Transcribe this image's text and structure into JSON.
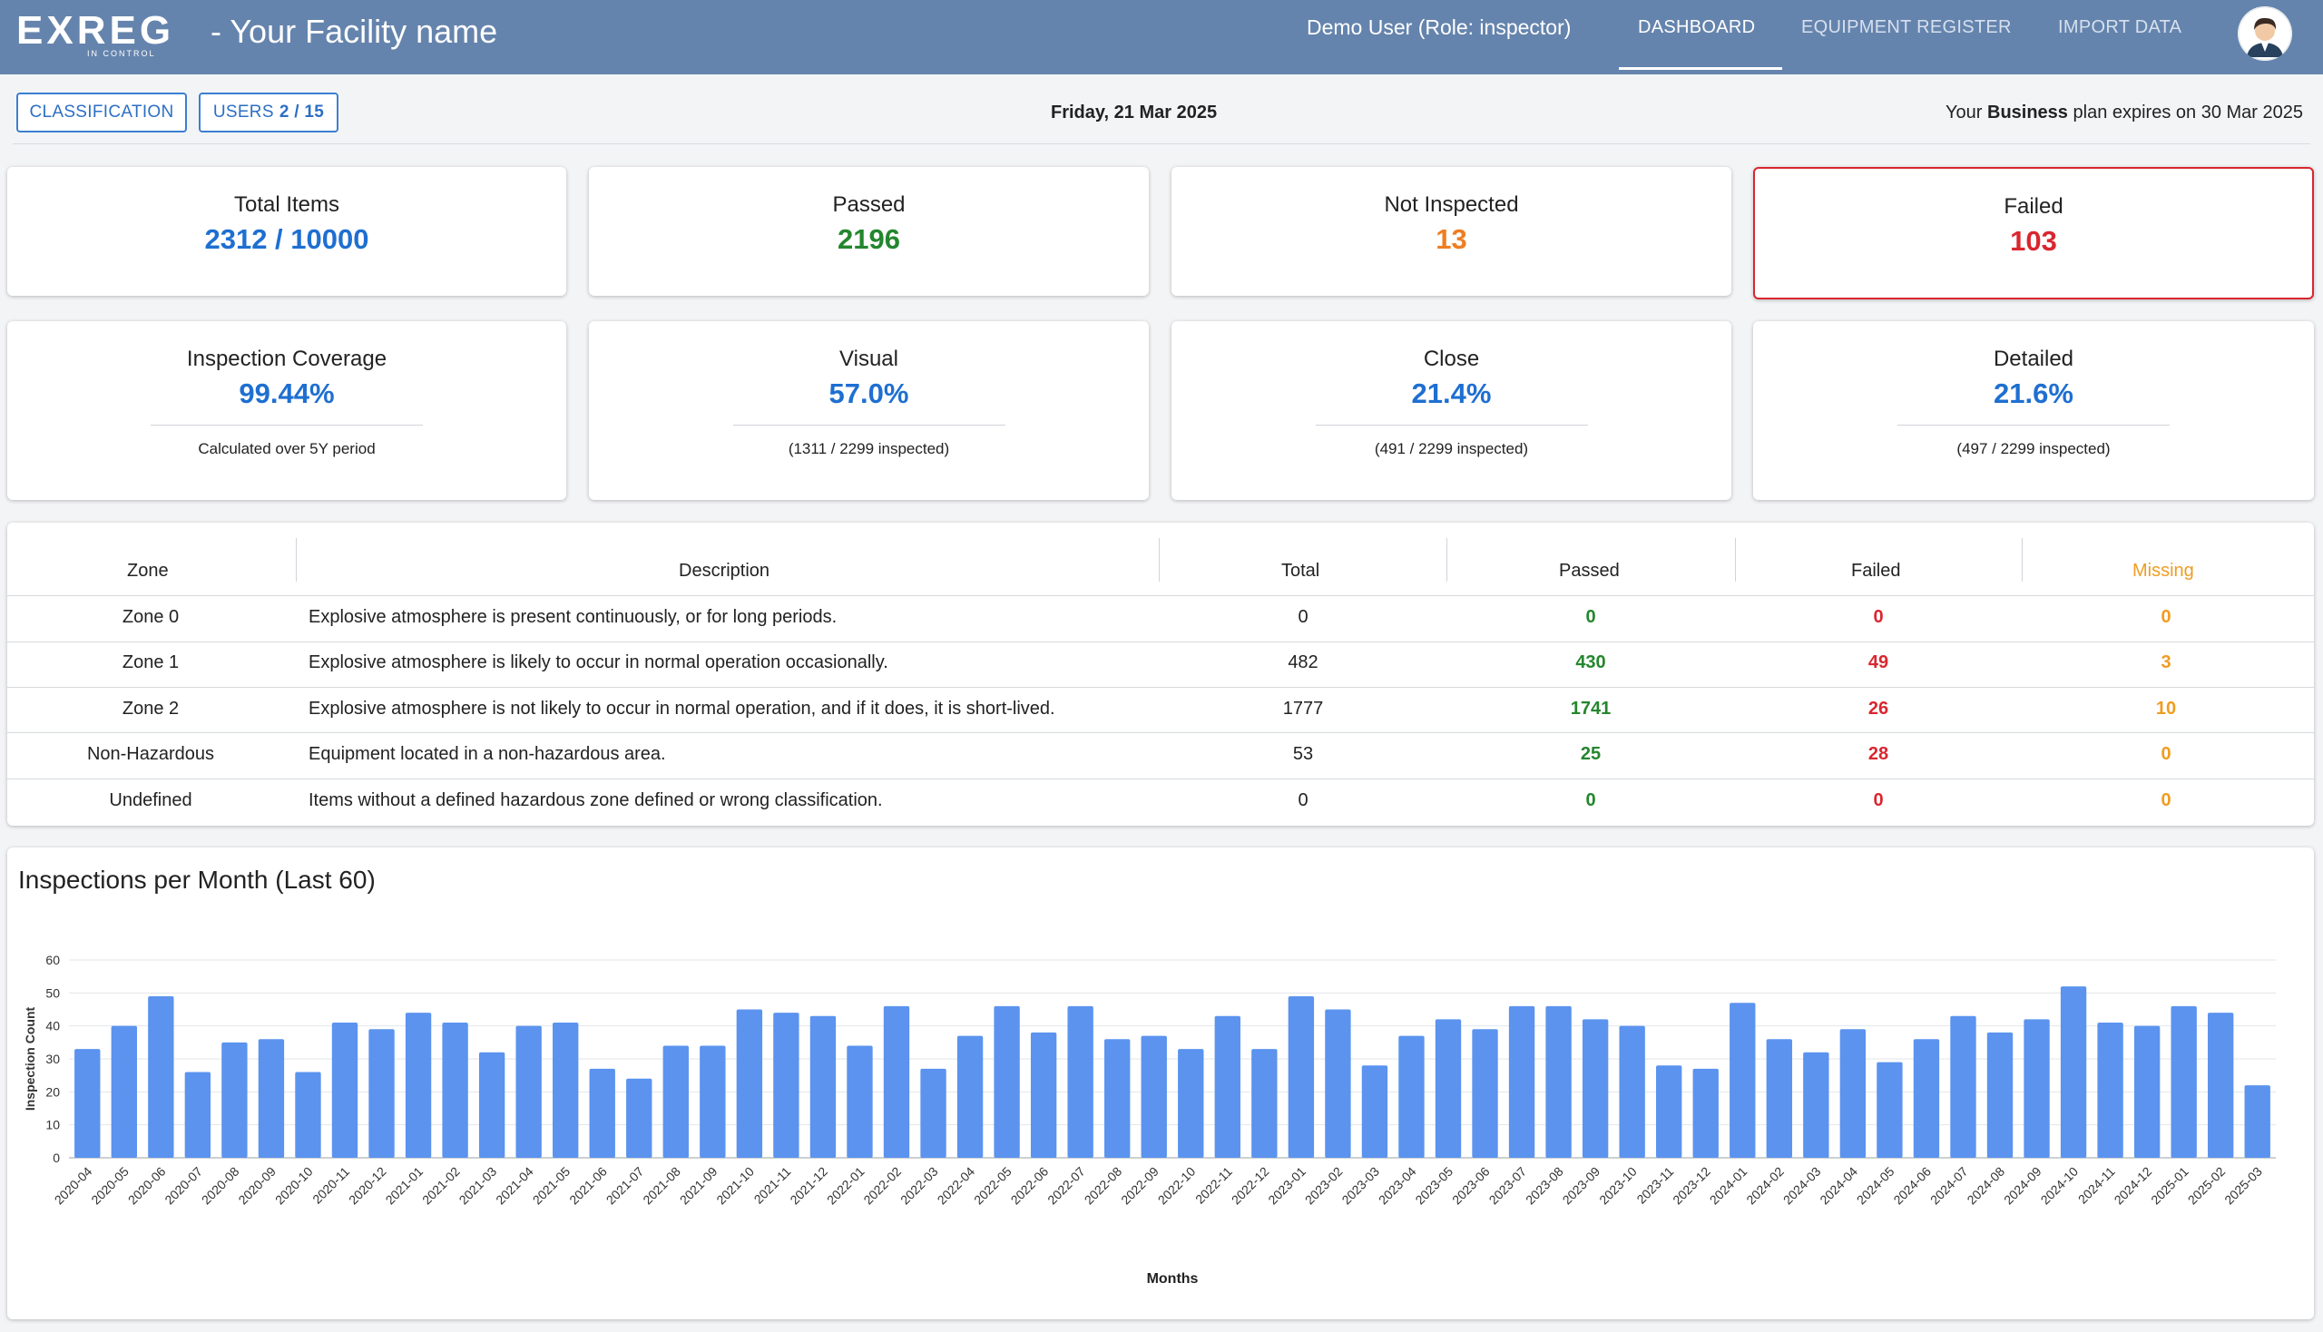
{
  "header": {
    "logo_text": "EXREG",
    "logo_tagline": "IN CONTROL",
    "facility": "- Your Facility name",
    "user_role": "Demo User (Role: inspector)",
    "nav": [
      "DASHBOARD",
      "EQUIPMENT REGISTER",
      "IMPORT DATA"
    ],
    "active_nav": "DASHBOARD"
  },
  "subbar": {
    "classification_label": "CLASSIFICATION",
    "users_label": "USERS",
    "users_count": "2 / 15",
    "date": "Friday, 21 Mar 2025",
    "plan_prefix": "Your",
    "plan_name": "Business",
    "plan_suffix": "plan expires on 30 Mar 2025"
  },
  "stats": [
    {
      "title": "Total Items",
      "value": "2312 / 10000",
      "color": "#1e6fd1"
    },
    {
      "title": "Passed",
      "value": "2196",
      "color": "#24862e"
    },
    {
      "title": "Not Inspected",
      "value": "13",
      "color": "#ef7d22"
    },
    {
      "title": "Failed",
      "value": "103",
      "color": "#d9262f"
    }
  ],
  "coverage": [
    {
      "title": "Inspection Coverage",
      "value": "99.44%",
      "note": "Calculated over 5Y period"
    },
    {
      "title": "Visual",
      "value": "57.0%",
      "note": "(1311 / 2299 inspected)"
    },
    {
      "title": "Close",
      "value": "21.4%",
      "note": "(491 / 2299 inspected)"
    },
    {
      "title": "Detailed",
      "value": "21.6%",
      "note": "(497 / 2299 inspected)"
    }
  ],
  "zones_table": {
    "headers": [
      "Zone",
      "Description",
      "Total",
      "Passed",
      "Failed",
      "Missing"
    ],
    "rows": [
      {
        "zone": "Zone 0",
        "description": "Explosive atmosphere is present continuously, or for long periods.",
        "total": "0",
        "passed": "0",
        "failed": "0",
        "missing": "0"
      },
      {
        "zone": "Zone 1",
        "description": "Explosive atmosphere is likely to occur in normal operation occasionally.",
        "total": "482",
        "passed": "430",
        "failed": "49",
        "missing": "3"
      },
      {
        "zone": "Zone 2",
        "description": "Explosive atmosphere is not likely to occur in normal operation, and if it does, it is short-lived.",
        "total": "1777",
        "passed": "1741",
        "failed": "26",
        "missing": "10"
      },
      {
        "zone": "Non-Hazardous",
        "description": "Equipment located in a non-hazardous area.",
        "total": "53",
        "passed": "25",
        "failed": "28",
        "missing": "0"
      },
      {
        "zone": "Undefined",
        "description": "Items without a defined hazardous zone defined or wrong classification.",
        "total": "0",
        "passed": "0",
        "failed": "0",
        "missing": "0"
      }
    ]
  },
  "colors": {
    "header": "#6584ad",
    "accent_blue": "#1e6fd1",
    "passed_green": "#24862e",
    "failed_red": "#d9262f",
    "missing_orange": "#ef9d22",
    "bar": "#5b93ef"
  },
  "chart_data": {
    "type": "bar",
    "title": "Inspections per Month (Last 60)",
    "xlabel": "Months",
    "ylabel": "Inspection Count",
    "ylim": [
      0,
      60
    ],
    "yticks": [
      0,
      10,
      20,
      30,
      40,
      50,
      60
    ],
    "grid": true,
    "categories": [
      "2020-04",
      "2020-05",
      "2020-06",
      "2020-07",
      "2020-08",
      "2020-09",
      "2020-10",
      "2020-11",
      "2020-12",
      "2021-01",
      "2021-02",
      "2021-03",
      "2021-04",
      "2021-05",
      "2021-06",
      "2021-07",
      "2021-08",
      "2021-09",
      "2021-10",
      "2021-11",
      "2021-12",
      "2022-01",
      "2022-02",
      "2022-03",
      "2022-04",
      "2022-05",
      "2022-06",
      "2022-07",
      "2022-08",
      "2022-09",
      "2022-10",
      "2022-11",
      "2022-12",
      "2023-01",
      "2023-02",
      "2023-03",
      "2023-04",
      "2023-05",
      "2023-06",
      "2023-07",
      "2023-08",
      "2023-09",
      "2023-10",
      "2023-11",
      "2023-12",
      "2024-01",
      "2024-02",
      "2024-03",
      "2024-04",
      "2024-05",
      "2024-06",
      "2024-07",
      "2024-08",
      "2024-09",
      "2024-10",
      "2024-11",
      "2024-12",
      "2025-01",
      "2025-02",
      "2025-03"
    ],
    "values": [
      33,
      40,
      49,
      26,
      35,
      36,
      26,
      41,
      39,
      44,
      41,
      32,
      40,
      41,
      27,
      24,
      34,
      34,
      45,
      44,
      43,
      34,
      46,
      27,
      37,
      46,
      38,
      46,
      36,
      37,
      33,
      43,
      33,
      49,
      45,
      28,
      37,
      42,
      39,
      46,
      46,
      42,
      40,
      28,
      27,
      47,
      36,
      32,
      39,
      29,
      36,
      43,
      38,
      42,
      52,
      41,
      40,
      46,
      44,
      22
    ]
  }
}
